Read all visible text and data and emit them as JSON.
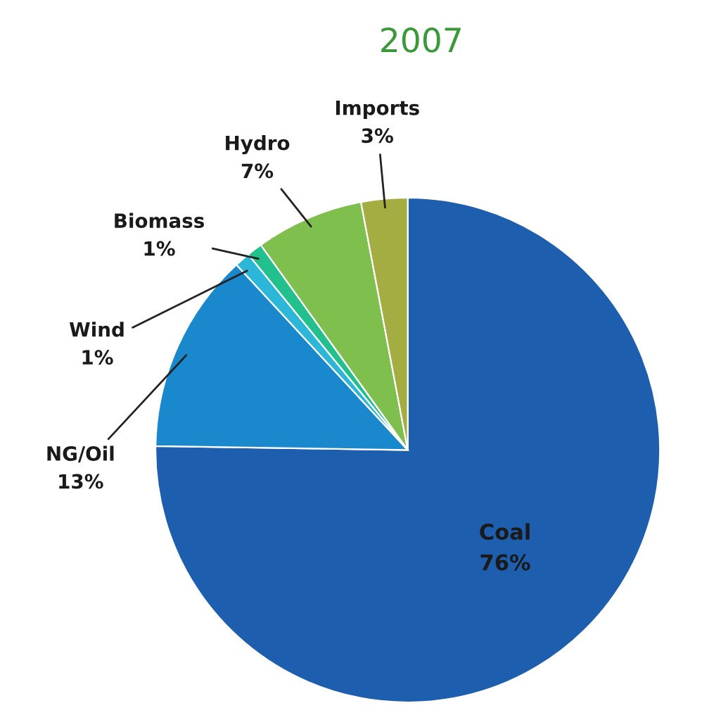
{
  "chart_data": {
    "type": "pie",
    "title": "2007",
    "categories": [
      "Coal",
      "NG/Oil",
      "Wind",
      "Biomass",
      "Hydro",
      "Imports"
    ],
    "values": [
      76,
      13,
      1,
      1,
      7,
      3
    ],
    "value_labels": [
      "76%",
      "13%",
      "1%",
      "1%",
      "7%",
      "3%"
    ],
    "colors": [
      "#1d5fae",
      "#1a88cc",
      "#2cb6d8",
      "#22c08c",
      "#7fbf4d",
      "#a3ad42"
    ]
  }
}
